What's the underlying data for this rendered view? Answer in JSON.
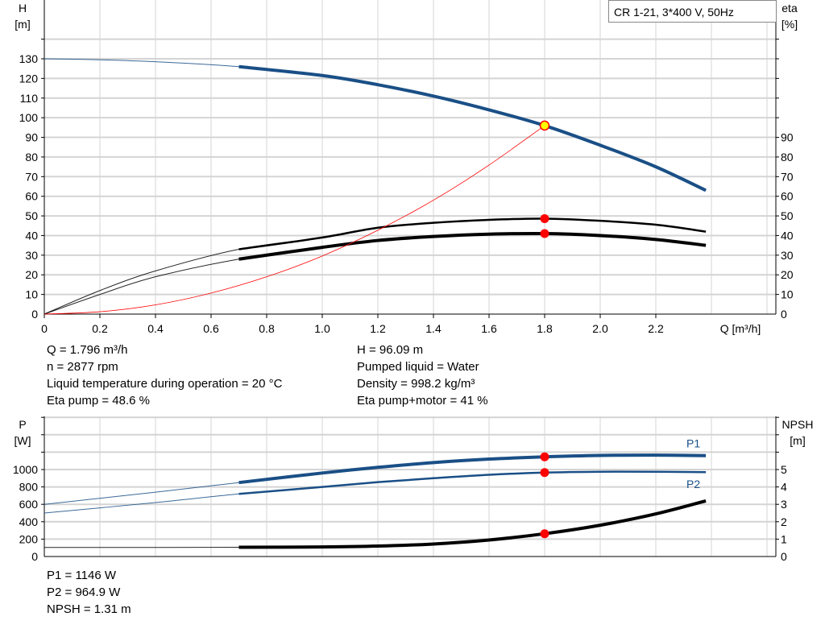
{
  "chart_data": [
    {
      "type": "line",
      "title": "CR 1-21, 3*400 V, 50Hz",
      "xlabel": "Q [m³/h]",
      "ylabel": "H",
      "yunit": "[m]",
      "y2label": "eta",
      "y2unit": "[%]",
      "xlim": [
        0,
        2.6
      ],
      "ylim": [
        0,
        140
      ],
      "y2lim": [
        0,
        140
      ],
      "xticks": [
        "0",
        "0.2",
        "0.4",
        "0.6",
        "0.8",
        "1.0",
        "1.2",
        "1.4",
        "1.6",
        "1.8",
        "2.0",
        "2.2"
      ],
      "yticks": [
        "0",
        "10",
        "20",
        "30",
        "40",
        "50",
        "60",
        "70",
        "80",
        "90",
        "100",
        "110",
        "120",
        "130"
      ],
      "y2ticks": [
        "0",
        "10",
        "20",
        "30",
        "40",
        "50",
        "60",
        "70",
        "80",
        "90"
      ],
      "grid": true,
      "series": [
        {
          "id": "H",
          "axis": "left",
          "color": "#1a4f86",
          "x": [
            0,
            0.2,
            0.4,
            0.7,
            1.0,
            1.2,
            1.4,
            1.6,
            1.8,
            2.0,
            2.2,
            2.38
          ],
          "y": [
            130,
            129.5,
            128.5,
            126,
            121.5,
            116.8,
            111,
            104,
            96,
            86,
            75,
            63
          ]
        },
        {
          "id": "eta-pump",
          "axis": "right",
          "color": "#000000",
          "x": [
            0,
            0.2,
            0.4,
            0.7,
            1.0,
            1.2,
            1.4,
            1.6,
            1.8,
            2.0,
            2.2,
            2.38
          ],
          "y": [
            0,
            12,
            22,
            33,
            39,
            44,
            46.5,
            48,
            48.6,
            47.5,
            45.5,
            42
          ]
        },
        {
          "id": "eta-total",
          "axis": "right",
          "color": "#000000",
          "x": [
            0,
            0.2,
            0.4,
            0.7,
            1.0,
            1.2,
            1.4,
            1.6,
            1.8,
            2.0,
            2.2,
            2.38
          ],
          "y": [
            0,
            10,
            19,
            28,
            34,
            37.5,
            39.5,
            40.7,
            41,
            40,
            38,
            35
          ]
        },
        {
          "id": "system",
          "axis": "left",
          "color": "#ff0000",
          "x": [
            0,
            0.2,
            0.4,
            0.6,
            0.8,
            1.0,
            1.2,
            1.4,
            1.6,
            1.8
          ],
          "y": [
            0,
            1.2,
            4.7,
            10.7,
            19,
            29.6,
            42.7,
            58,
            75.9,
            96
          ]
        }
      ],
      "operating_points": [
        {
          "x": 1.8,
          "y": 96,
          "axis": "left",
          "color": "#ffff00"
        },
        {
          "x": 1.8,
          "y": 48.6,
          "axis": "right",
          "color": "#ff0000"
        },
        {
          "x": 1.8,
          "y": 41,
          "axis": "right",
          "color": "#ff0000"
        }
      ]
    },
    {
      "type": "line",
      "ylabel": "P",
      "yunit": "[W]",
      "y2label": "NPSH",
      "y2unit": "[m]",
      "xlim": [
        0,
        2.6
      ],
      "ylim": [
        0,
        1600
      ],
      "y2lim": [
        0,
        8
      ],
      "yticks": [
        "0",
        "200",
        "400",
        "600",
        "800",
        "1000"
      ],
      "y2ticks": [
        "0",
        "1",
        "2",
        "3",
        "4",
        "5"
      ],
      "grid": true,
      "series": [
        {
          "id": "P1",
          "name": "P1",
          "axis": "left",
          "color": "#1a4f86",
          "x": [
            0,
            0.4,
            0.7,
            1.0,
            1.2,
            1.4,
            1.6,
            1.8,
            2.0,
            2.2,
            2.38
          ],
          "y": [
            600,
            740,
            850,
            960,
            1025,
            1080,
            1120,
            1146,
            1162,
            1165,
            1160
          ]
        },
        {
          "id": "P2",
          "name": "P2",
          "axis": "left",
          "color": "#1a4f86",
          "x": [
            0,
            0.4,
            0.7,
            1.0,
            1.2,
            1.4,
            1.6,
            1.8,
            2.0,
            2.2,
            2.38
          ],
          "y": [
            500,
            620,
            720,
            800,
            855,
            900,
            940,
            965,
            975,
            975,
            970
          ]
        },
        {
          "id": "NPSH",
          "axis": "right",
          "color": "#000000",
          "x": [
            0,
            0.4,
            0.7,
            1.0,
            1.2,
            1.4,
            1.6,
            1.8,
            2.0,
            2.2,
            2.38
          ],
          "y": [
            0.52,
            0.52,
            0.53,
            0.55,
            0.6,
            0.72,
            0.95,
            1.31,
            1.8,
            2.45,
            3.2
          ]
        }
      ],
      "operating_points": [
        {
          "x": 1.8,
          "y": 1146,
          "axis": "left"
        },
        {
          "x": 1.8,
          "y": 965,
          "axis": "left"
        },
        {
          "x": 1.8,
          "y": 1.31,
          "axis": "right"
        }
      ]
    }
  ],
  "info": {
    "left": [
      "Q = 1.796 m³/h",
      "n = 2877 rpm",
      "Liquid temperature during operation = 20 °C",
      "Eta pump = 48.6 %"
    ],
    "right": [
      "H = 96.09 m",
      "Pumped liquid = Water",
      "Density = 998.2 kg/m³",
      "Eta pump+motor = 41 %"
    ],
    "bottom": [
      "P1 = 1146 W",
      "P2 = 964.9 W",
      "NPSH = 1.31 m"
    ]
  }
}
